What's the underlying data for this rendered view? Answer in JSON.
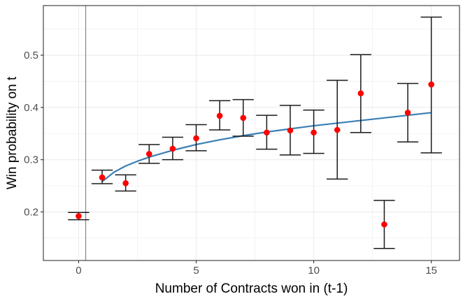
{
  "chart_data": {
    "type": "scatter",
    "xlabel": "Number of Contracts won in (t-1)",
    "ylabel": "Win probability on t",
    "xlim": [
      -1.5,
      16.2
    ],
    "ylim": [
      0.107,
      0.595
    ],
    "x_ticks": [
      0,
      5,
      10,
      15
    ],
    "x_tick_labels": [
      "0",
      "5",
      "10",
      "15"
    ],
    "y_ticks": [
      0.2,
      0.3,
      0.4,
      0.5
    ],
    "y_tick_labels": [
      "0.2",
      "0.3",
      "0.4",
      "0.5"
    ],
    "grid": true,
    "vertical_reference_line_x": 0.3,
    "points": [
      {
        "x": 0,
        "y": 0.192,
        "lo": 0.185,
        "hi": 0.199
      },
      {
        "x": 1,
        "y": 0.266,
        "lo": 0.254,
        "hi": 0.28
      },
      {
        "x": 2,
        "y": 0.255,
        "lo": 0.24,
        "hi": 0.271
      },
      {
        "x": 3,
        "y": 0.311,
        "lo": 0.293,
        "hi": 0.329
      },
      {
        "x": 4,
        "y": 0.321,
        "lo": 0.3,
        "hi": 0.343
      },
      {
        "x": 5,
        "y": 0.341,
        "lo": 0.317,
        "hi": 0.367
      },
      {
        "x": 6,
        "y": 0.384,
        "lo": 0.357,
        "hi": 0.413
      },
      {
        "x": 7,
        "y": 0.38,
        "lo": 0.345,
        "hi": 0.415
      },
      {
        "x": 8,
        "y": 0.352,
        "lo": 0.32,
        "hi": 0.385
      },
      {
        "x": 9,
        "y": 0.356,
        "lo": 0.309,
        "hi": 0.404
      },
      {
        "x": 10,
        "y": 0.352,
        "lo": 0.312,
        "hi": 0.395
      },
      {
        "x": 11,
        "y": 0.357,
        "lo": 0.263,
        "hi": 0.452
      },
      {
        "x": 12,
        "y": 0.427,
        "lo": 0.352,
        "hi": 0.501
      },
      {
        "x": 13,
        "y": 0.176,
        "lo": 0.13,
        "hi": 0.222
      },
      {
        "x": 14,
        "y": 0.39,
        "lo": 0.334,
        "hi": 0.446
      },
      {
        "x": 15,
        "y": 0.444,
        "lo": 0.313,
        "hi": 0.573
      }
    ],
    "fit_line": {
      "x": [
        1,
        1.5,
        2,
        2.5,
        3,
        4,
        5,
        6,
        7,
        8,
        9,
        10,
        11,
        12,
        13,
        14,
        15
      ],
      "y": [
        0.258,
        0.276,
        0.288,
        0.297,
        0.305,
        0.318,
        0.329,
        0.338,
        0.346,
        0.353,
        0.359,
        0.365,
        0.37,
        0.375,
        0.38,
        0.385,
        0.39
      ]
    },
    "colors": {
      "points": "#ff0000",
      "errorbars": "#1a1a1a",
      "fit_line": "#3a7fb5",
      "ref_line": "#8c8c8c",
      "grid": "#ebebeb",
      "panel_border": "#333333"
    }
  }
}
